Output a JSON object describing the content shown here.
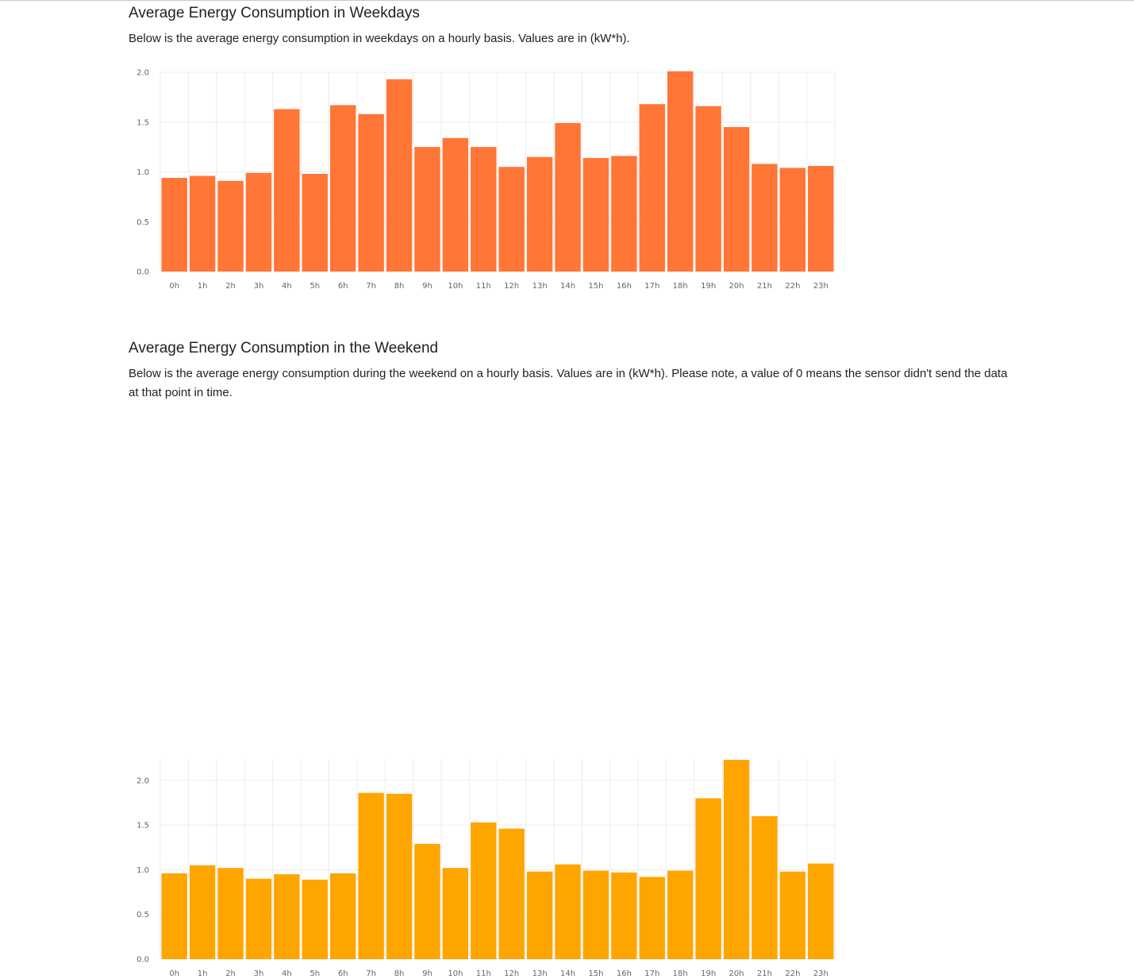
{
  "weekdays": {
    "title": "Average Energy Consumption in Weekdays",
    "description": "Below is the average energy consumption in weekdays on a hourly basis. Values are in (kW*h)."
  },
  "weekend": {
    "title": "Average Energy Consumption in the Weekend",
    "description": "Below is the average energy consumption during the weekend on a hourly basis. Values are in (kW*h). Please note, a value of 0 means the sensor didn't send the data at that point in time."
  },
  "chart_data": [
    {
      "type": "bar",
      "categories": [
        "0h",
        "1h",
        "2h",
        "3h",
        "4h",
        "5h",
        "6h",
        "7h",
        "8h",
        "9h",
        "10h",
        "11h",
        "12h",
        "13h",
        "14h",
        "15h",
        "16h",
        "17h",
        "18h",
        "19h",
        "20h",
        "21h",
        "22h",
        "23h"
      ],
      "values": [
        0.94,
        0.96,
        0.91,
        0.99,
        1.63,
        0.98,
        1.67,
        1.58,
        1.93,
        1.25,
        1.34,
        1.25,
        1.05,
        1.15,
        1.49,
        1.14,
        1.16,
        1.68,
        2.01,
        1.66,
        1.45,
        1.08,
        1.04,
        1.06
      ],
      "ylim": [
        0,
        2.0
      ],
      "yticks": [
        "0.0",
        "0.5",
        "1.0",
        "1.5",
        "2.0"
      ],
      "ytick_values": [
        0,
        0.5,
        1.0,
        1.5,
        2.0
      ],
      "color": "#ff7636",
      "grid": true,
      "title": "",
      "xlabel": "",
      "ylabel": ""
    },
    {
      "type": "bar",
      "categories": [
        "0h",
        "1h",
        "2h",
        "3h",
        "4h",
        "5h",
        "6h",
        "7h",
        "8h",
        "9h",
        "10h",
        "11h",
        "12h",
        "13h",
        "14h",
        "15h",
        "16h",
        "17h",
        "18h",
        "19h",
        "20h",
        "21h",
        "22h",
        "23h"
      ],
      "values": [
        0.96,
        1.05,
        1.02,
        0.9,
        0.95,
        0.89,
        0.96,
        1.86,
        1.85,
        1.29,
        1.02,
        1.53,
        1.46,
        0.98,
        1.06,
        0.99,
        0.97,
        0.92,
        0.99,
        1.8,
        2.23,
        1.6,
        0.98,
        1.07
      ],
      "ylim": [
        0,
        2.23
      ],
      "yticks": [
        "0.0",
        "0.5",
        "1.0",
        "1.5",
        "2.0"
      ],
      "ytick_values": [
        0,
        0.5,
        1.0,
        1.5,
        2.0
      ],
      "color": "#ffa500",
      "grid": true,
      "title": "",
      "xlabel": "",
      "ylabel": ""
    }
  ]
}
